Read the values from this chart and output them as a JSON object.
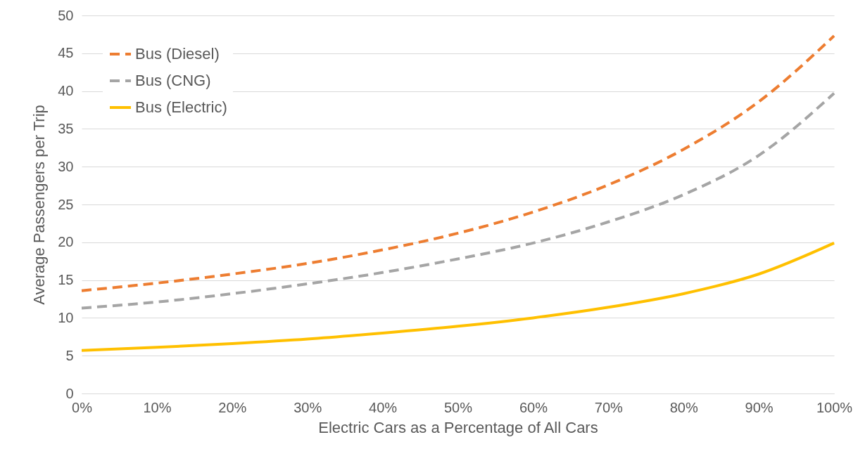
{
  "chart_data": {
    "type": "line",
    "xlabel": "Electric Cars as a Percentage of All Cars",
    "ylabel": "Average Passengers per Trip",
    "x": [
      0,
      10,
      20,
      30,
      40,
      50,
      60,
      70,
      80,
      90,
      100
    ],
    "series": [
      {
        "name": "Bus (Diesel)",
        "color": "#ed7d31",
        "line_style": "dashed",
        "values": [
          13.6,
          14.6,
          15.8,
          17.2,
          19.0,
          21.2,
          24.0,
          27.6,
          32.3,
          38.6,
          47.3
        ]
      },
      {
        "name": "Bus (CNG)",
        "color": "#a5a5a5",
        "line_style": "dashed",
        "values": [
          11.3,
          12.1,
          13.2,
          14.5,
          16.0,
          17.8,
          19.9,
          22.7,
          26.3,
          31.5,
          39.7
        ]
      },
      {
        "name": "Bus (Electric)",
        "color": "#ffc000",
        "line_style": "solid",
        "values": [
          5.7,
          6.1,
          6.6,
          7.2,
          8.0,
          8.9,
          10.0,
          11.4,
          13.2,
          15.8,
          19.9
        ]
      }
    ],
    "xlim": [
      0,
      100
    ],
    "xticks": [
      {
        "value": 0,
        "label": "0%"
      },
      {
        "value": 10,
        "label": "10%"
      },
      {
        "value": 20,
        "label": "20%"
      },
      {
        "value": 30,
        "label": "30%"
      },
      {
        "value": 40,
        "label": "40%"
      },
      {
        "value": 50,
        "label": "50%"
      },
      {
        "value": 60,
        "label": "60%"
      },
      {
        "value": 70,
        "label": "70%"
      },
      {
        "value": 80,
        "label": "80%"
      },
      {
        "value": 90,
        "label": "90%"
      },
      {
        "value": 100,
        "label": "100%"
      }
    ],
    "ylim": [
      0,
      50
    ],
    "yticks": [
      0,
      5,
      10,
      15,
      20,
      25,
      30,
      35,
      40,
      45,
      50
    ],
    "grid": "y",
    "legend": "top left",
    "marker": "none"
  }
}
